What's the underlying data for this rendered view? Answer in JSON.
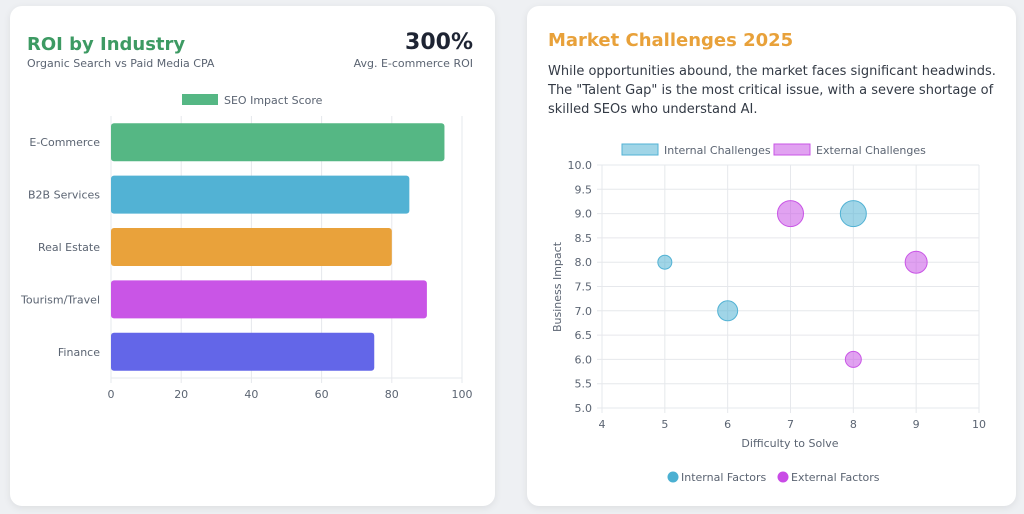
{
  "left_card": {
    "title": "ROI by Industry",
    "subtitle": "Organic Search vs Paid Media CPA",
    "kpi_value": "300%",
    "kpi_label": "Avg. E-commerce ROI",
    "title_color": "#3d9a63"
  },
  "right_card": {
    "title": "Market Challenges 2025",
    "title_color": "#e8a13a",
    "paragraph": "While opportunities abound, the market faces significant headwinds. The \"Talent Gap\" is the most critical issue, with a severe shortage of skilled SEOs who understand AI."
  },
  "chart_data": [
    {
      "type": "bar",
      "orientation": "horizontal",
      "categories": [
        "E-Commerce",
        "B2B Services",
        "Real Estate",
        "Tourism/Travel",
        "Finance"
      ],
      "series": [
        {
          "name": "SEO Impact Score",
          "values": [
            95,
            85,
            80,
            90,
            75
          ]
        }
      ],
      "bar_colors": [
        "#55b784",
        "#52b2d4",
        "#e9a23b",
        "#c955e6",
        "#6366e8"
      ],
      "legend_color": "#55b784",
      "xlim": [
        0,
        100
      ],
      "xticks": [
        "0",
        "20",
        "40",
        "60",
        "80",
        "100"
      ],
      "grid": true,
      "legend": "top"
    },
    {
      "type": "scatter",
      "subtype": "bubble",
      "xlabel": "Difficulty to Solve",
      "ylabel": "Business Impact",
      "xlim": [
        4,
        10
      ],
      "ylim": [
        5,
        10
      ],
      "xticks": [
        "4",
        "5",
        "6",
        "7",
        "8",
        "9",
        "10"
      ],
      "yticks": [
        "5.0",
        "5.5",
        "6.0",
        "6.5",
        "7.0",
        "7.5",
        "8.0",
        "8.5",
        "9.0",
        "9.5",
        "10.0"
      ],
      "grid": true,
      "legend": "top",
      "series": [
        {
          "name": "Internal Challenges",
          "color": "#52b2d4",
          "points": [
            {
              "x": 5,
              "y": 8,
              "r": 7
            },
            {
              "x": 6,
              "y": 7,
              "r": 10
            },
            {
              "x": 8,
              "y": 9,
              "r": 13
            }
          ]
        },
        {
          "name": "External Challenges",
          "color": "#c955e6",
          "points": [
            {
              "x": 7,
              "y": 9,
              "r": 13
            },
            {
              "x": 9,
              "y": 8,
              "r": 11
            },
            {
              "x": 8,
              "y": 6,
              "r": 8
            }
          ]
        }
      ],
      "bottom_legend": [
        {
          "label": "Internal Factors",
          "color": "#4bb0d2"
        },
        {
          "label": "External Factors",
          "color": "#c94be6"
        }
      ]
    }
  ]
}
